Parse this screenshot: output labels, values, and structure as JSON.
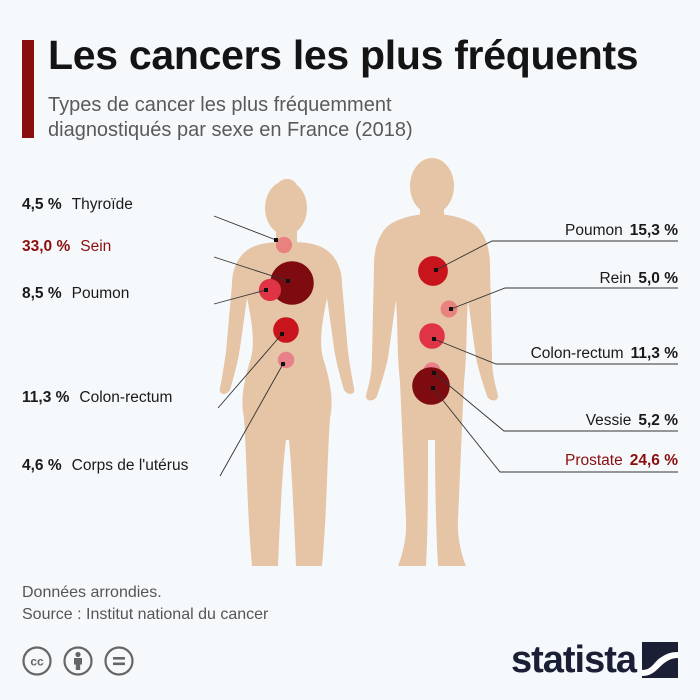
{
  "header": {
    "title": "Les cancers les plus fréquents",
    "subtitle": "Types de cancer les plus fréquemment diagnostiqués par sexe en France (2018)"
  },
  "colors": {
    "accent": "#8b0e0e",
    "body": "#e5c5a6",
    "leader": "#333333",
    "text": "#1a1a1a"
  },
  "chart_data": {
    "type": "bubble",
    "title": "Les cancers les plus fréquents",
    "unit": "%",
    "series": [
      {
        "name": "Femmes",
        "items": [
          {
            "label": "Thyroïde",
            "value": 4.5,
            "display": "4,5 %",
            "highlight": false,
            "color": "#e8827e"
          },
          {
            "label": "Sein",
            "value": 33.0,
            "display": "33,0 %",
            "highlight": true,
            "color": "#7d0b10"
          },
          {
            "label": "Poumon",
            "value": 8.5,
            "display": "8,5 %",
            "highlight": false,
            "color": "#de3446"
          },
          {
            "label": "Colon-rectum",
            "value": 11.3,
            "display": "11,3 %",
            "highlight": false,
            "color": "#c8141c"
          },
          {
            "label": "Corps de l'utérus",
            "value": 4.6,
            "display": "4,6 %",
            "highlight": false,
            "color": "#e8808a"
          }
        ]
      },
      {
        "name": "Hommes",
        "items": [
          {
            "label": "Poumon",
            "value": 15.3,
            "display": "15,3 %",
            "highlight": false,
            "color": "#c8141c"
          },
          {
            "label": "Rein",
            "value": 5.0,
            "display": "5,0 %",
            "highlight": false,
            "color": "#e8827e"
          },
          {
            "label": "Colon-rectum",
            "value": 11.3,
            "display": "11,3 %",
            "highlight": false,
            "color": "#de3446"
          },
          {
            "label": "Vessie",
            "value": 5.2,
            "display": "5,2 %",
            "highlight": false,
            "color": "#e8808a"
          },
          {
            "label": "Prostate",
            "value": 24.6,
            "display": "24,6 %",
            "highlight": true,
            "color": "#7d0b10"
          }
        ]
      }
    ]
  },
  "footer": {
    "note": "Données arrondies.",
    "source": "Source : Institut national du cancer"
  },
  "license": {
    "icons": [
      "cc-icon",
      "attribution-icon",
      "no-derivatives-icon"
    ]
  },
  "brand": {
    "name": "statista"
  }
}
